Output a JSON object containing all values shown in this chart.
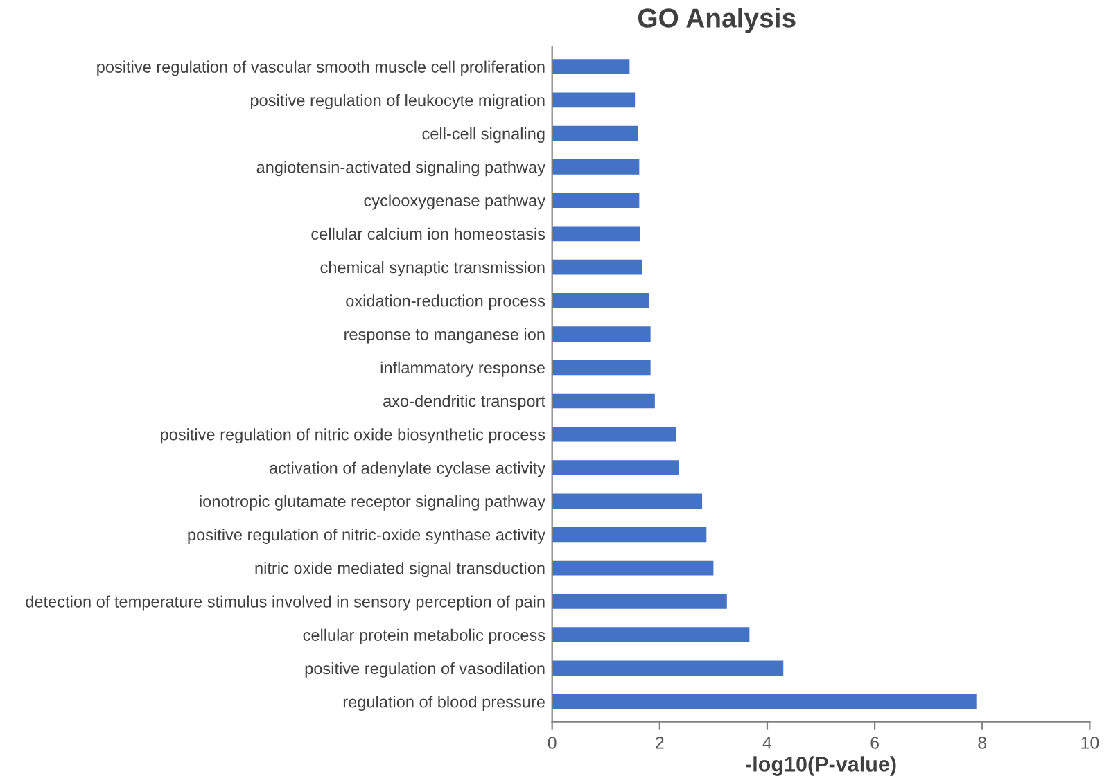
{
  "chart_data": {
    "type": "bar",
    "orientation": "horizontal",
    "title": "GO Analysis",
    "xlabel": "-log10(P-value)",
    "categories": [
      "positive regulation of vascular smooth muscle cell proliferation",
      "positive regulation of leukocyte migration",
      "cell-cell signaling",
      "angiotensin-activated signaling pathway",
      "cyclooxygenase pathway",
      "cellular calcium ion homeostasis",
      "chemical synaptic transmission",
      "oxidation-reduction process",
      "response to manganese ion",
      "inflammatory response",
      "axo-dendritic transport",
      "positive regulation of nitric oxide biosynthetic process",
      "activation of adenylate cyclase activity",
      "ionotropic glutamate receptor signaling pathway",
      "positive regulation of nitric-oxide synthase activity",
      "nitric oxide mediated signal transduction",
      "detection of temperature stimulus involved in sensory perception of pain",
      "cellular protein metabolic process",
      "positive regulation of vasodilation",
      "regulation of blood pressure"
    ],
    "values": [
      1.44,
      1.54,
      1.59,
      1.62,
      1.62,
      1.64,
      1.68,
      1.8,
      1.83,
      1.83,
      1.91,
      2.3,
      2.35,
      2.79,
      2.87,
      3.0,
      3.25,
      3.67,
      4.3,
      7.89
    ],
    "color": "#4472c4",
    "xlim": [
      0,
      10
    ],
    "xticks": [
      0,
      2,
      4,
      6,
      8,
      10
    ],
    "grid": false
  }
}
